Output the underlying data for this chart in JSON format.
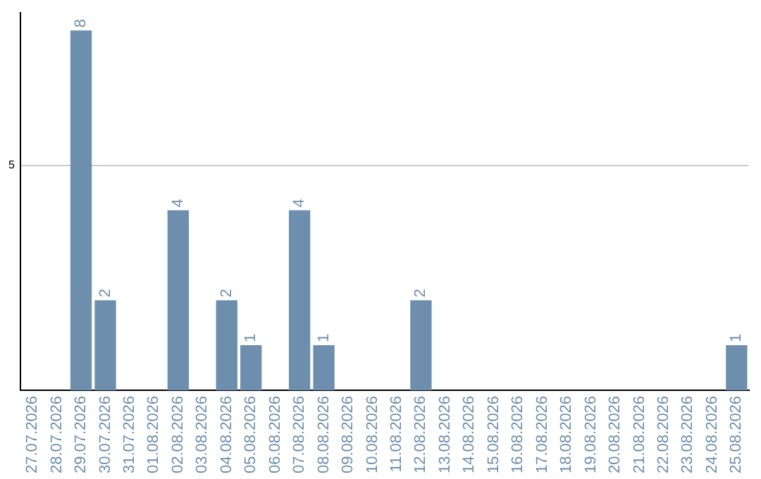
{
  "chart_data": {
    "type": "bar",
    "categories": [
      "27.07.2026",
      "28.07.2026",
      "29.07.2026",
      "30.07.2026",
      "31.07.2026",
      "01.08.2026",
      "02.08.2026",
      "03.08.2026",
      "04.08.2026",
      "05.08.2026",
      "06.08.2026",
      "07.08.2026",
      "08.08.2026",
      "09.08.2026",
      "10.08.2026",
      "11.08.2026",
      "12.08.2026",
      "13.08.2026",
      "14.08.2026",
      "15.08.2026",
      "16.08.2026",
      "17.08.2026",
      "18.08.2026",
      "19.08.2026",
      "20.08.2026",
      "21.08.2026",
      "22.08.2026",
      "23.08.2026",
      "24.08.2026",
      "25.08.2026"
    ],
    "values": [
      0,
      0,
      8,
      2,
      0,
      0,
      4,
      0,
      2,
      1,
      0,
      4,
      1,
      0,
      0,
      0,
      2,
      0,
      0,
      0,
      0,
      0,
      0,
      0,
      0,
      0,
      0,
      0,
      0,
      1
    ],
    "value_labels": [
      null,
      null,
      "8",
      "2",
      null,
      null,
      "4",
      null,
      "2",
      "1",
      null,
      "4",
      "1",
      null,
      null,
      null,
      "2",
      null,
      null,
      null,
      null,
      null,
      null,
      null,
      null,
      null,
      null,
      null,
      null,
      "1"
    ],
    "color": "#6d8fad",
    "ylim": [
      0,
      8.4
    ],
    "yticks": [
      5
    ],
    "grid": "y",
    "legend": false
  }
}
